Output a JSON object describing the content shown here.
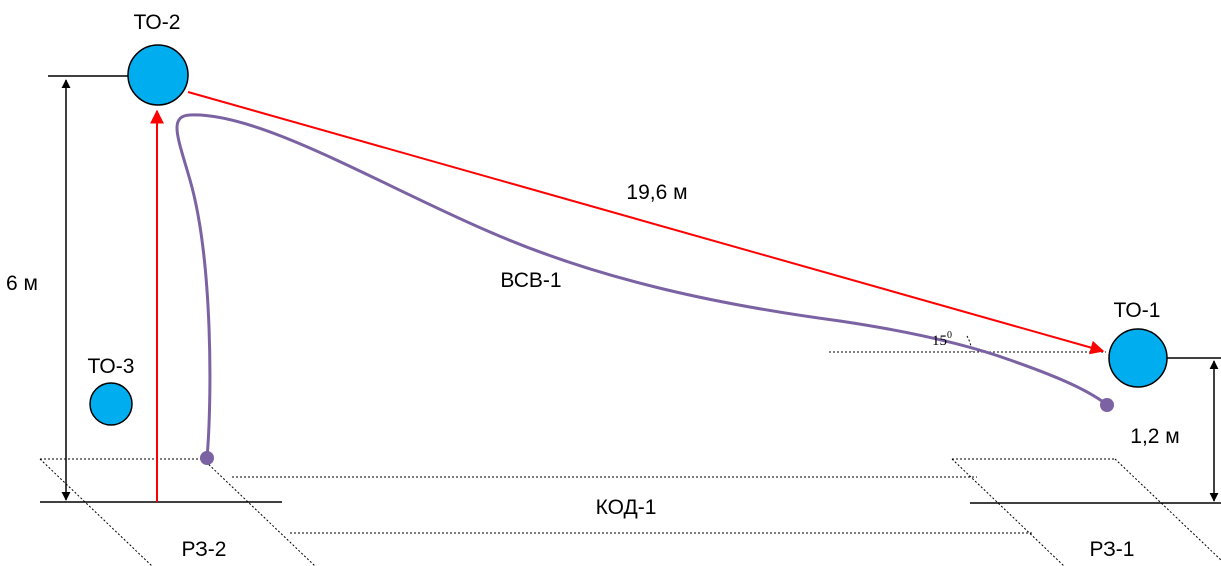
{
  "labels": {
    "to2": "ТО-2",
    "to1": "ТО-1",
    "to3": "ТО-3",
    "height_left": "6 м",
    "distance": "19,6 м",
    "height_right": "1,2 м",
    "cable": "ВСВ-1",
    "channel": "КОД-1",
    "rz2": "РЗ-2",
    "rz1": "РЗ-1",
    "angle": "15",
    "angle_sup": "0"
  },
  "colors": {
    "node_fill": "#00AEEF",
    "node_stroke": "#000000",
    "arrow": "#FF0000",
    "cable": "#7B62A3",
    "line": "#000000"
  }
}
